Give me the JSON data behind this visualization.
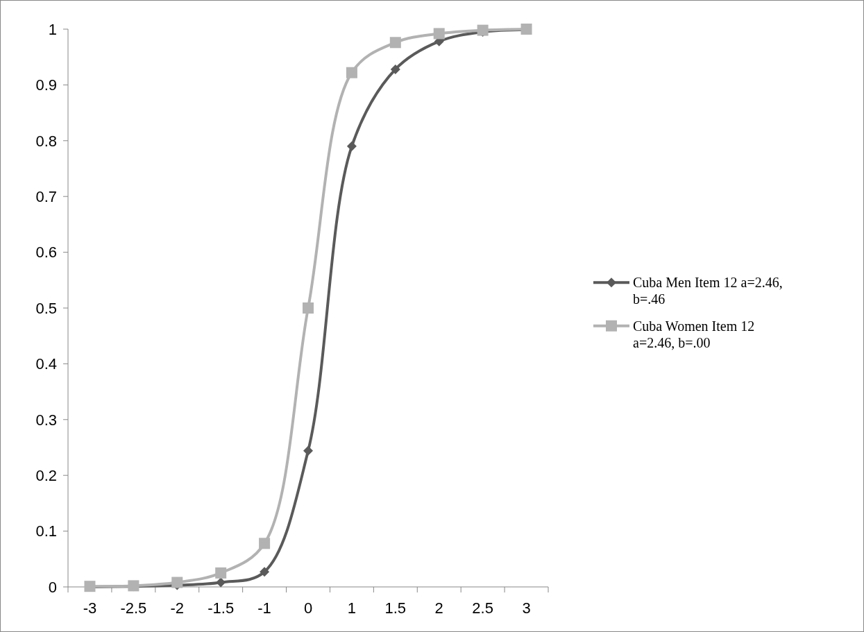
{
  "chart_data": {
    "type": "line",
    "categories": [
      "-3",
      "-2.5",
      "-2",
      "-1.5",
      "-1",
      "0",
      "1",
      "1.5",
      "2",
      "2.5",
      "3"
    ],
    "series": [
      {
        "name": "Cuba Men Item 12 a=2.46, b=.46",
        "color": "#5a5a5a",
        "marker": "diamond",
        "values": [
          0,
          0.001,
          0.003,
          0.008,
          0.027,
          0.244,
          0.79,
          0.928,
          0.978,
          0.995,
          0.999
        ]
      },
      {
        "name": "Cuba Women Item 12 a=2.46, b=.00",
        "color": "#b2b2b2",
        "marker": "square",
        "values": [
          0.001,
          0.002,
          0.008,
          0.025,
          0.078,
          0.5,
          0.922,
          0.976,
          0.992,
          0.998,
          1
        ]
      }
    ],
    "ylim": [
      0,
      1
    ],
    "yticks": [
      0,
      0.1,
      0.2,
      0.3,
      0.4,
      0.5,
      0.6,
      0.7,
      0.8,
      0.9,
      1
    ],
    "grid": false,
    "legend": "right",
    "line_style": "solid"
  }
}
